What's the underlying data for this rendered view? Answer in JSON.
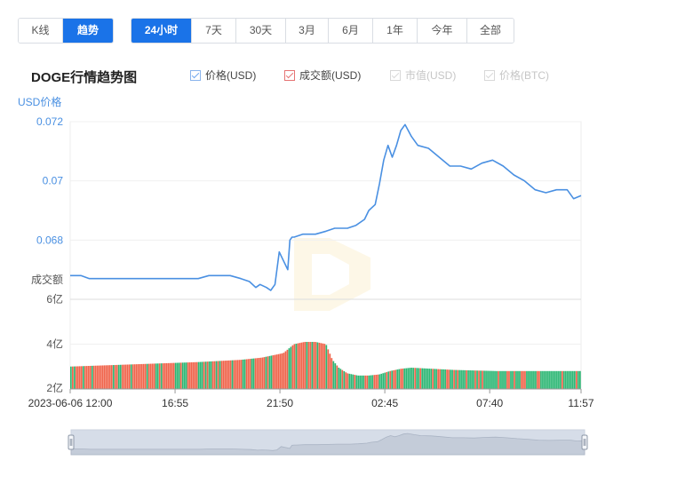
{
  "view_tabs": [
    {
      "label": "K线",
      "active": false
    },
    {
      "label": "趋势",
      "active": true
    }
  ],
  "range_tabs": [
    {
      "label": "24小时",
      "active": true
    },
    {
      "label": "7天",
      "active": false
    },
    {
      "label": "30天",
      "active": false
    },
    {
      "label": "3月",
      "active": false
    },
    {
      "label": "6月",
      "active": false
    },
    {
      "label": "1年",
      "active": false
    },
    {
      "label": "今年",
      "active": false
    },
    {
      "label": "全部",
      "active": false
    }
  ],
  "chart_title": "DOGE行情趋势图",
  "legend": [
    {
      "label": "价格(USD)",
      "enabled": true,
      "color": "#4a90e2"
    },
    {
      "label": "成交额(USD)",
      "enabled": true,
      "color": "#e57373"
    },
    {
      "label": "市值(USD)",
      "enabled": false,
      "color": "#cccccc"
    },
    {
      "label": "价格(BTC)",
      "enabled": false,
      "color": "#cccccc"
    }
  ],
  "colors": {
    "accent": "#1a73e8",
    "price_line": "#4a90e2",
    "volume_up": "#2bb673",
    "volume_down": "#f0634a",
    "navigator_fill": "#d6dde8"
  },
  "chart_data": {
    "type": "line",
    "price_axis": {
      "label": "USD价格",
      "ticks": [
        "0.072",
        "0.07",
        "0.068"
      ],
      "tick_values": [
        0.072,
        0.07,
        0.068
      ],
      "range": [
        0.066,
        0.072
      ]
    },
    "volume_axis": {
      "label": "成交额",
      "ticks": [
        "6亿",
        "4亿",
        "2亿"
      ],
      "tick_values": [
        6,
        4,
        2
      ],
      "unit": "亿",
      "range": [
        2,
        6
      ]
    },
    "x_ticks": [
      "2023-06-06 12:00",
      "16:55",
      "21:50",
      "02:45",
      "07:40",
      "11:57"
    ],
    "x_tick_hours": [
      0,
      4.917,
      9.833,
      14.75,
      19.667,
      23.95
    ],
    "x_range_hours": [
      0,
      23.95
    ],
    "series": [
      {
        "name": "价格(USD)",
        "x_hours": [
          0,
          0.5,
          0.9,
          1.5,
          2.5,
          3.5,
          4.5,
          5.0,
          6.0,
          6.5,
          7.5,
          8.0,
          8.4,
          8.7,
          8.9,
          9.2,
          9.4,
          9.6,
          9.8,
          10.2,
          10.3,
          10.4,
          10.5,
          10.9,
          11.5,
          12.0,
          12.4,
          13.0,
          13.4,
          13.8,
          14.0,
          14.3,
          14.5,
          14.7,
          14.9,
          15.0,
          15.1,
          15.3,
          15.5,
          15.7,
          16.0,
          16.3,
          16.8,
          17.3,
          17.8,
          18.3,
          18.8,
          19.3,
          19.8,
          20.3,
          20.8,
          21.3,
          21.8,
          22.3,
          22.8,
          23.3,
          23.6,
          23.95
        ],
        "values": [
          0.0668,
          0.0668,
          0.0667,
          0.0667,
          0.0667,
          0.0667,
          0.0667,
          0.0667,
          0.0667,
          0.0668,
          0.0668,
          0.0667,
          0.0666,
          0.0664,
          0.0665,
          0.0664,
          0.0663,
          0.0665,
          0.0676,
          0.067,
          0.068,
          0.0681,
          0.0681,
          0.0682,
          0.0682,
          0.0683,
          0.0684,
          0.0684,
          0.0685,
          0.0687,
          0.069,
          0.0692,
          0.0699,
          0.0707,
          0.0712,
          0.071,
          0.0708,
          0.0712,
          0.0717,
          0.0719,
          0.0715,
          0.0712,
          0.0711,
          0.0708,
          0.0705,
          0.0705,
          0.0704,
          0.0706,
          0.0707,
          0.0705,
          0.0702,
          0.07,
          0.0697,
          0.0696,
          0.0697,
          0.0697,
          0.0694,
          0.0695
        ]
      },
      {
        "name": "成交额(USD)",
        "unit": "亿",
        "x_hours": [
          0,
          3,
          6,
          8,
          9,
          10.0,
          10.5,
          11.0,
          11.5,
          12.0,
          12.3,
          12.6,
          13.0,
          13.5,
          14.0,
          14.5,
          15.0,
          15.5,
          16.0,
          17.0,
          18.0,
          20.0,
          22.0,
          23.95
        ],
        "values": [
          3.0,
          3.1,
          3.2,
          3.3,
          3.4,
          3.6,
          4.0,
          4.1,
          4.1,
          4.0,
          3.3,
          2.95,
          2.7,
          2.6,
          2.6,
          2.65,
          2.8,
          2.9,
          2.95,
          2.9,
          2.85,
          2.8,
          2.8,
          2.8
        ]
      }
    ],
    "grid": true,
    "legend_position": "top"
  }
}
